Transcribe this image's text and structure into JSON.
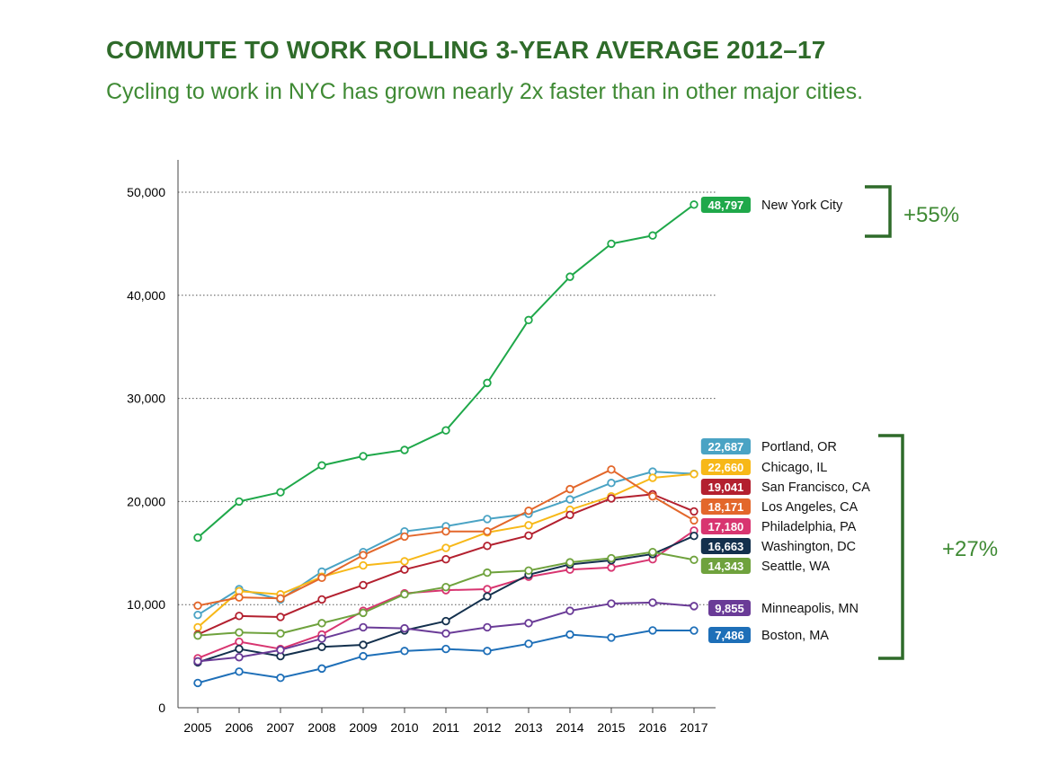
{
  "header": {
    "title": "COMMUTE TO WORK ROLLING 3-YEAR AVERAGE 2012–17",
    "subtitle": "Cycling to work in NYC has grown nearly 2x faster than in other major cities."
  },
  "chart_data": {
    "type": "line",
    "title": "COMMUTE TO WORK ROLLING 3-YEAR AVERAGE 2012–17",
    "subtitle": "Cycling to work in NYC has grown nearly 2x faster than in other major cities.",
    "x": [
      2005,
      2006,
      2007,
      2008,
      2009,
      2010,
      2011,
      2012,
      2013,
      2014,
      2015,
      2016,
      2017
    ],
    "ylim": [
      0,
      50000
    ],
    "yticks": [
      0,
      10000,
      20000,
      30000,
      40000,
      50000
    ],
    "ytick_labels": [
      "0",
      "10,000",
      "20,000",
      "30,000",
      "40,000",
      "50,000"
    ],
    "grid": "horizontal dotted",
    "series": [
      {
        "name": "New York City",
        "color": "#1fa84a",
        "label": "48,797",
        "values": [
          16500,
          20000,
          20900,
          23500,
          24400,
          25000,
          26900,
          31500,
          37600,
          41800,
          45000,
          45800,
          48797
        ]
      },
      {
        "name": "Portland, OR",
        "color": "#4aa3c4",
        "label": "22,687",
        "values": [
          9000,
          11500,
          10500,
          13200,
          15100,
          17100,
          17600,
          18300,
          18800,
          20200,
          21800,
          22900,
          22687
        ]
      },
      {
        "name": "Chicago, IL",
        "color": "#f7b818",
        "label": "22,660",
        "values": [
          7800,
          11300,
          11000,
          12700,
          13800,
          14200,
          15500,
          17000,
          17700,
          19200,
          20500,
          22300,
          22660
        ]
      },
      {
        "name": "San Francisco, CA",
        "color": "#b3202f",
        "label": "19,041",
        "values": [
          7100,
          8900,
          8800,
          10500,
          11900,
          13400,
          14400,
          15700,
          16700,
          18700,
          20300,
          20700,
          19041
        ]
      },
      {
        "name": "Los Angeles, CA",
        "color": "#e3672b",
        "label": "18,171",
        "values": [
          9900,
          10700,
          10600,
          12600,
          14800,
          16600,
          17100,
          17100,
          19100,
          21200,
          23100,
          20500,
          18171
        ]
      },
      {
        "name": "Philadelphia, PA",
        "color": "#d83570",
        "label": "17,180",
        "values": [
          4800,
          6400,
          5700,
          7100,
          9400,
          11100,
          11400,
          11500,
          12700,
          13400,
          13600,
          14400,
          17180
        ]
      },
      {
        "name": "Washington, DC",
        "color": "#13304d",
        "label": "16,663",
        "values": [
          4400,
          5700,
          5000,
          5900,
          6100,
          7500,
          8400,
          10800,
          12900,
          13900,
          14300,
          14900,
          16663
        ]
      },
      {
        "name": "Seattle, WA",
        "color": "#6fa23d",
        "label": "14,343",
        "values": [
          7000,
          7300,
          7200,
          8200,
          9200,
          11000,
          11700,
          13100,
          13300,
          14100,
          14500,
          15100,
          14343
        ]
      },
      {
        "name": "Minneapolis, MN",
        "color": "#6a3b97",
        "label": "9,855",
        "values": [
          4500,
          4900,
          5600,
          6700,
          7800,
          7700,
          7200,
          7800,
          8200,
          9400,
          10100,
          10200,
          9855
        ]
      },
      {
        "name": "Boston, MA",
        "color": "#1e6fb8",
        "label": "7,486",
        "values": [
          2400,
          3500,
          2900,
          3800,
          5000,
          5500,
          5700,
          5500,
          6200,
          7100,
          6800,
          7500,
          7486
        ]
      }
    ],
    "annotations": [
      {
        "text": "+55%",
        "group": "New York City"
      },
      {
        "text": "+27%",
        "group": "other major cities"
      }
    ]
  }
}
